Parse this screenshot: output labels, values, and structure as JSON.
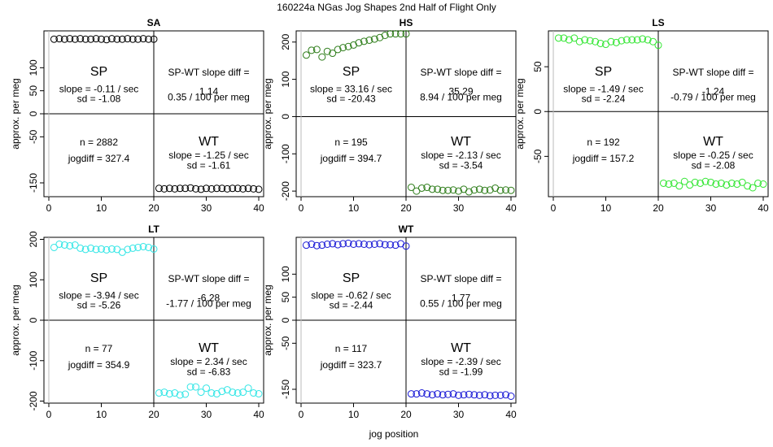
{
  "figure": {
    "title": "160224a   NGas Jog Shapes 2nd Half of Flight Only",
    "xlabel": "jog position",
    "ylabel": "approx. per meg"
  },
  "chart_data": [
    {
      "type": "scatter",
      "title": "SA",
      "color": "#000000",
      "xlim": [
        0,
        40
      ],
      "ylim": [
        -180,
        180
      ],
      "xticks": [
        "0",
        "10",
        "20",
        "30",
        "40"
      ],
      "yticks": [
        {
          "v": 100,
          "label": "100"
        },
        {
          "v": 50,
          "label": "50"
        },
        {
          "v": 0,
          "label": "0"
        },
        {
          "v": -50,
          "label": "-50"
        },
        {
          "v": -150,
          "label": "-150"
        }
      ],
      "x_sp": [
        1,
        2,
        3,
        4,
        5,
        6,
        7,
        8,
        9,
        10,
        11,
        12,
        13,
        14,
        15,
        16,
        17,
        18,
        19,
        20
      ],
      "sp_values": [
        162,
        163,
        162,
        163,
        162,
        163,
        162,
        162,
        163,
        162,
        161,
        163,
        162,
        162,
        163,
        162,
        162,
        163,
        162,
        162
      ],
      "x_wt": [
        21,
        22,
        23,
        24,
        25,
        26,
        27,
        28,
        29,
        30,
        31,
        32,
        33,
        34,
        35,
        36,
        37,
        38,
        39,
        40
      ],
      "wt_values": [
        -162,
        -163,
        -162,
        -163,
        -162,
        -162,
        -161,
        -163,
        -164,
        -162,
        -163,
        -162,
        -162,
        -163,
        -162,
        -162,
        -163,
        -162,
        -163,
        -164
      ],
      "sp_text": "SP",
      "wt_text": "WT",
      "sp_slope": "slope = -0.11 / sec",
      "sp_sd": "sd = -1.08",
      "diff_title": "SP-WT slope diff =",
      "diff_value": "1.14",
      "diff_permeg": "0.35 / 100 per meg",
      "n": "n = 2882",
      "jogdiff": "jogdiff = 327.4",
      "wt_slope": "slope = -1.25 / sec",
      "wt_sd": "sd = -1.61"
    },
    {
      "type": "scatter",
      "title": "HS",
      "color": "#2e7d1a",
      "xlim": [
        0,
        40
      ],
      "ylim": [
        -215,
        230
      ],
      "xticks": [
        "0",
        "10",
        "20",
        "30",
        "40"
      ],
      "yticks": [
        {
          "v": 200,
          "label": "200"
        },
        {
          "v": 100,
          "label": "100"
        },
        {
          "v": 0,
          "label": "0"
        },
        {
          "v": -100,
          "label": "-100"
        },
        {
          "v": -200,
          "label": "-200"
        }
      ],
      "x_sp": [
        1,
        2,
        3,
        4,
        5,
        6,
        7,
        8,
        9,
        10,
        11,
        12,
        13,
        14,
        15,
        16,
        17,
        18,
        19,
        20
      ],
      "sp_values": [
        165,
        178,
        180,
        160,
        175,
        170,
        180,
        185,
        188,
        192,
        198,
        202,
        205,
        208,
        212,
        218,
        222,
        222,
        222,
        222
      ],
      "x_wt": [
        21,
        22,
        23,
        24,
        25,
        26,
        27,
        28,
        29,
        30,
        31,
        32,
        33,
        34,
        35,
        36,
        37,
        38,
        39,
        40
      ],
      "wt_values": [
        -190,
        -200,
        -192,
        -190,
        -195,
        -195,
        -198,
        -198,
        -197,
        -200,
        -195,
        -202,
        -197,
        -195,
        -198,
        -197,
        -192,
        -198,
        -197,
        -198
      ],
      "sp_text": "SP",
      "wt_text": "WT",
      "sp_slope": "slope = 33.16 / sec",
      "sp_sd": "sd = -20.43",
      "diff_title": "SP-WT slope diff =",
      "diff_value": "35.29",
      "diff_permeg": "8.94 / 100 per meg",
      "n": "n = 195",
      "jogdiff": "jogdiff = 394.7",
      "wt_slope": "slope = -2.13 / sec",
      "wt_sd": "sd = -3.54"
    },
    {
      "type": "scatter",
      "title": "LS",
      "color": "#33e633",
      "xlim": [
        0,
        40
      ],
      "ylim": [
        -95,
        90
      ],
      "xticks": [
        "0",
        "10",
        "20",
        "30",
        "40"
      ],
      "yticks": [
        {
          "v": 50,
          "label": "50"
        },
        {
          "v": 0,
          "label": "0"
        },
        {
          "v": -50,
          "label": "-50"
        }
      ],
      "x_sp": [
        1,
        2,
        3,
        4,
        5,
        6,
        7,
        8,
        9,
        10,
        11,
        12,
        13,
        14,
        15,
        16,
        17,
        18,
        19,
        20
      ],
      "sp_values": [
        82,
        82,
        80,
        82,
        78,
        80,
        79,
        78,
        76,
        75,
        78,
        77,
        79,
        80,
        80,
        80,
        81,
        80,
        78,
        74
      ],
      "x_wt": [
        21,
        22,
        23,
        24,
        25,
        26,
        27,
        28,
        29,
        30,
        31,
        32,
        33,
        34,
        35,
        36,
        37,
        38,
        39,
        40
      ],
      "wt_values": [
        -80,
        -81,
        -80,
        -83,
        -78,
        -82,
        -79,
        -80,
        -78,
        -79,
        -81,
        -80,
        -82,
        -80,
        -81,
        -79,
        -83,
        -85,
        -80,
        -81
      ],
      "sp_text": "SP",
      "wt_text": "WT",
      "sp_slope": "slope = -1.49 / sec",
      "sp_sd": "sd = -2.24",
      "diff_title": "SP-WT slope diff =",
      "diff_value": "-1.24",
      "diff_permeg": "-0.79 / 100 per meg",
      "n": "n = 192",
      "jogdiff": "jogdiff = 157.2",
      "wt_slope": "slope = -0.25 / sec",
      "wt_sd": "sd = -2.08"
    },
    {
      "type": "scatter",
      "title": "LT",
      "color": "#33e6e6",
      "xlim": [
        0,
        40
      ],
      "ylim": [
        -205,
        205
      ],
      "xticks": [
        "0",
        "10",
        "20",
        "30",
        "40"
      ],
      "yticks": [
        {
          "v": 200,
          "label": "200"
        },
        {
          "v": 100,
          "label": "100"
        },
        {
          "v": 0,
          "label": "0"
        },
        {
          "v": -100,
          "label": "-100"
        },
        {
          "v": -200,
          "label": "-200"
        }
      ],
      "x_sp": [
        1,
        2,
        3,
        4,
        5,
        6,
        7,
        8,
        9,
        10,
        11,
        12,
        13,
        14,
        15,
        16,
        17,
        18,
        19,
        20
      ],
      "sp_values": [
        180,
        188,
        186,
        184,
        186,
        178,
        175,
        178,
        175,
        176,
        174,
        176,
        175,
        168,
        175,
        178,
        180,
        182,
        180,
        176
      ],
      "x_wt": [
        21,
        22,
        23,
        24,
        25,
        26,
        27,
        28,
        29,
        30,
        31,
        32,
        33,
        34,
        35,
        36,
        37,
        38,
        39,
        40
      ],
      "wt_values": [
        -180,
        -178,
        -182,
        -180,
        -185,
        -183,
        -165,
        -165,
        -178,
        -168,
        -180,
        -182,
        -176,
        -172,
        -178,
        -180,
        -178,
        -168,
        -180,
        -182
      ],
      "sp_text": "SP",
      "wt_text": "WT",
      "sp_slope": "slope = -3.94 / sec",
      "sp_sd": "sd = -5.26",
      "diff_title": "SP-WT slope diff =",
      "diff_value": "-6.28",
      "diff_permeg": "-1.77 / 100 per meg",
      "n": "n = 77",
      "jogdiff": "jogdiff = 354.9",
      "wt_slope": "slope = 2.34 / sec",
      "wt_sd": "sd = -6.83"
    },
    {
      "type": "scatter",
      "title": "WT",
      "color": "#1a1ad6",
      "xlim": [
        0,
        40
      ],
      "ylim": [
        -180,
        180
      ],
      "xticks": [
        "0",
        "10",
        "20",
        "30",
        "40"
      ],
      "yticks": [
        {
          "v": 100,
          "label": "100"
        },
        {
          "v": 50,
          "label": "50"
        },
        {
          "v": 0,
          "label": "0"
        },
        {
          "v": -50,
          "label": "-50"
        },
        {
          "v": -150,
          "label": "-150"
        }
      ],
      "x_sp": [
        1,
        2,
        3,
        4,
        5,
        6,
        7,
        8,
        9,
        10,
        11,
        12,
        13,
        14,
        15,
        16,
        17,
        18,
        19,
        20
      ],
      "sp_values": [
        163,
        165,
        162,
        163,
        165,
        166,
        164,
        166,
        167,
        165,
        166,
        165,
        164,
        165,
        166,
        164,
        164,
        163,
        166,
        161
      ],
      "x_wt": [
        21,
        22,
        23,
        24,
        25,
        26,
        27,
        28,
        29,
        30,
        31,
        32,
        33,
        34,
        35,
        36,
        37,
        38,
        39,
        40
      ],
      "wt_values": [
        -160,
        -160,
        -158,
        -160,
        -162,
        -160,
        -162,
        -161,
        -160,
        -163,
        -162,
        -161,
        -162,
        -163,
        -162,
        -164,
        -163,
        -163,
        -162,
        -165
      ],
      "sp_text": "SP",
      "wt_text": "WT",
      "sp_slope": "slope = -0.62 / sec",
      "sp_sd": "sd = -2.44",
      "diff_title": "SP-WT slope diff =",
      "diff_value": "1.77",
      "diff_permeg": "0.55 / 100 per meg",
      "n": "n = 117",
      "jogdiff": "jogdiff = 323.7",
      "wt_slope": "slope = -2.39 / sec",
      "wt_sd": "sd = -1.99"
    }
  ]
}
